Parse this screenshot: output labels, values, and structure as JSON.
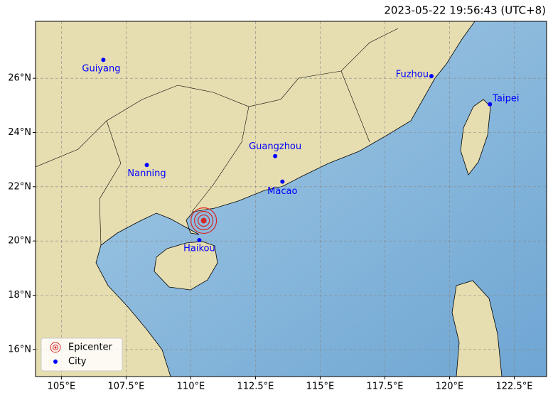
{
  "title": "2023-05-22 19:56:43 (UTC+8)",
  "map": {
    "xlim": [
      104,
      123.75
    ],
    "ylim": [
      15,
      28.1
    ],
    "grid": true,
    "xticks": [
      {
        "value": 105,
        "label": "105°E"
      },
      {
        "value": 107.5,
        "label": "107.5°E"
      },
      {
        "value": 110,
        "label": "110°E"
      },
      {
        "value": 112.5,
        "label": "112.5°E"
      },
      {
        "value": 115,
        "label": "115°E"
      },
      {
        "value": 117.5,
        "label": "117.5°E"
      },
      {
        "value": 120,
        "label": "120°E"
      },
      {
        "value": 122.5,
        "label": "122.5°E"
      }
    ],
    "yticks": [
      {
        "value": 16,
        "label": "16°N"
      },
      {
        "value": 18,
        "label": "18°N"
      },
      {
        "value": 20,
        "label": "20°N"
      },
      {
        "value": 22,
        "label": "22°N"
      },
      {
        "value": 24,
        "label": "24°N"
      },
      {
        "value": 26,
        "label": "26°N"
      }
    ],
    "epicenter": {
      "lon": 110.5,
      "lat": 20.75,
      "color": "#d62728"
    },
    "city_color": "#0000ff",
    "cities": [
      {
        "name": "Guiyang",
        "lon": 106.62,
        "lat": 26.68
      },
      {
        "name": "Nanning",
        "lon": 108.3,
        "lat": 22.8
      },
      {
        "name": "Guangzhou",
        "lon": 113.26,
        "lat": 23.13
      },
      {
        "name": "Macao",
        "lon": 113.54,
        "lat": 22.19
      },
      {
        "name": "Fuzhou",
        "lon": 119.3,
        "lat": 26.08
      },
      {
        "name": "Taipei",
        "lon": 121.56,
        "lat": 25.04
      },
      {
        "name": "Haikou",
        "lon": 110.33,
        "lat": 20.03
      }
    ],
    "legend": {
      "position": "lower left",
      "items": [
        "Epicenter",
        "City"
      ]
    }
  }
}
